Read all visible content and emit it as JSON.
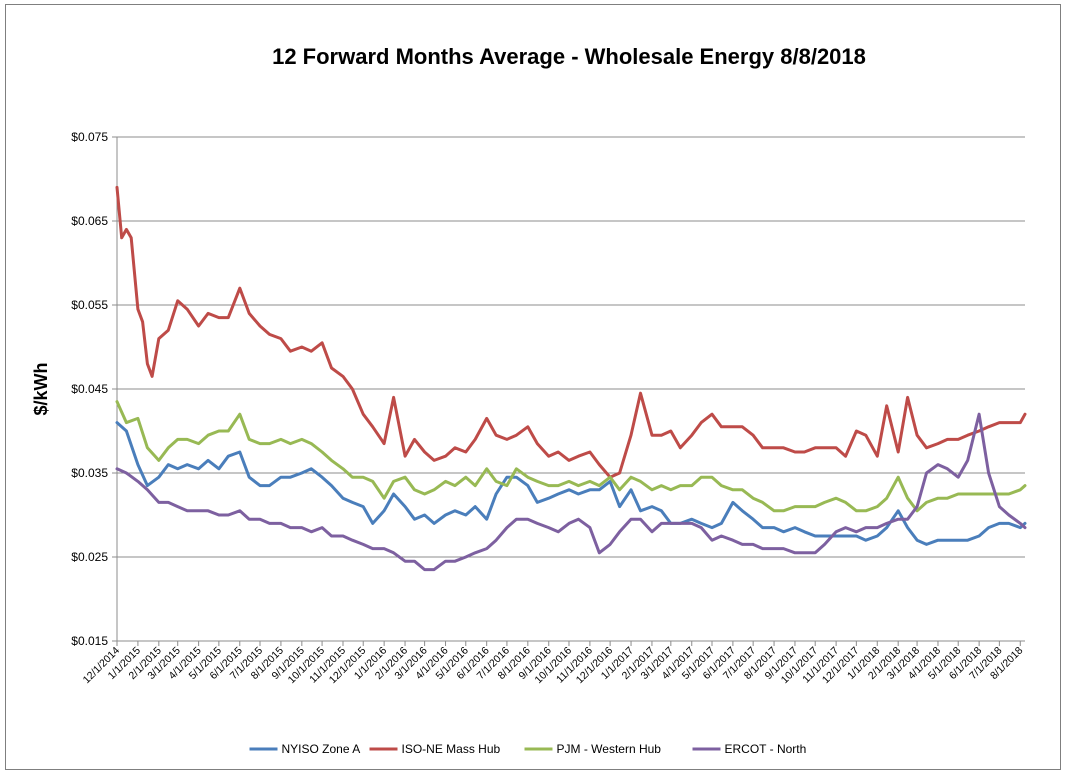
{
  "chart_data": {
    "type": "line",
    "title": "12 Forward Months Average - Wholesale Energy 8/8/2018",
    "ylabel": "$/kWh",
    "xlabel": "",
    "ylim": [
      0.015,
      0.075
    ],
    "y_ticks": [
      0.015,
      0.025,
      0.035,
      0.045,
      0.055,
      0.065,
      0.075
    ],
    "y_tick_labels": [
      "$0.015",
      "$0.025",
      "$0.035",
      "$0.045",
      "$0.055",
      "$0.065",
      "$0.075"
    ],
    "x_tick_labels": [
      "12/1/2014",
      "1/1/2015",
      "2/1/2015",
      "3/1/2015",
      "4/1/2015",
      "5/1/2015",
      "6/1/2015",
      "7/1/2015",
      "8/1/2015",
      "9/1/2015",
      "10/1/2015",
      "11/1/2015",
      "12/1/2015",
      "1/1/2016",
      "2/1/2016",
      "3/1/2016",
      "4/1/2016",
      "5/1/2016",
      "6/1/2016",
      "7/1/2016",
      "8/1/2016",
      "9/1/2016",
      "10/1/2016",
      "11/1/2016",
      "12/1/2016",
      "1/1/2017",
      "2/1/2017",
      "3/1/2017",
      "4/1/2017",
      "5/1/2017",
      "6/1/2017",
      "7/1/2017",
      "8/1/2017",
      "9/1/2017",
      "10/1/2017",
      "11/1/2017",
      "12/1/2017",
      "1/1/2018",
      "2/1/2018",
      "3/1/2018",
      "4/1/2018",
      "5/1/2018",
      "6/1/2018",
      "7/1/2018",
      "8/1/2018"
    ],
    "grid": true,
    "legend_position": "bottom",
    "series": [
      {
        "name": "NYISO Zone A",
        "color": "#4a7ebb",
        "x": [
          "12/1/2014",
          "12/15/2014",
          "1/1/2015",
          "1/15/2015",
          "2/1/2015",
          "2/15/2015",
          "3/1/2015",
          "3/15/2015",
          "4/1/2015",
          "4/15/2015",
          "5/1/2015",
          "5/15/2015",
          "6/1/2015",
          "6/15/2015",
          "7/1/2015",
          "7/15/2015",
          "8/1/2015",
          "8/15/2015",
          "9/1/2015",
          "9/15/2015",
          "10/1/2015",
          "10/15/2015",
          "11/1/2015",
          "11/15/2015",
          "12/1/2015",
          "12/15/2015",
          "1/1/2016",
          "1/15/2016",
          "2/1/2016",
          "2/15/2016",
          "3/1/2016",
          "3/15/2016",
          "4/1/2016",
          "4/15/2016",
          "5/1/2016",
          "5/15/2016",
          "6/1/2016",
          "6/15/2016",
          "7/1/2016",
          "7/15/2016",
          "8/1/2016",
          "8/15/2016",
          "9/1/2016",
          "9/15/2016",
          "10/1/2016",
          "10/15/2016",
          "11/1/2016",
          "11/15/2016",
          "12/1/2016",
          "12/15/2016",
          "1/1/2017",
          "1/15/2017",
          "2/1/2017",
          "2/15/2017",
          "3/1/2017",
          "3/15/2017",
          "4/1/2017",
          "4/15/2017",
          "5/1/2017",
          "5/15/2017",
          "6/1/2017",
          "6/15/2017",
          "7/1/2017",
          "7/15/2017",
          "8/1/2017",
          "8/15/2017",
          "9/1/2017",
          "9/15/2017",
          "10/1/2017",
          "10/15/2017",
          "11/1/2017",
          "11/15/2017",
          "12/1/2017",
          "12/15/2017",
          "1/1/2018",
          "1/15/2018",
          "2/1/2018",
          "2/15/2018",
          "3/1/2018",
          "3/15/2018",
          "4/1/2018",
          "4/15/2018",
          "5/1/2018",
          "5/15/2018",
          "6/1/2018",
          "6/15/2018",
          "7/1/2018",
          "7/15/2018",
          "8/1/2018",
          "8/8/2018"
        ],
        "values": [
          0.041,
          0.04,
          0.036,
          0.0335,
          0.0345,
          0.036,
          0.0355,
          0.036,
          0.0355,
          0.0365,
          0.0355,
          0.037,
          0.0375,
          0.0345,
          0.0335,
          0.0335,
          0.0345,
          0.0345,
          0.035,
          0.0355,
          0.0345,
          0.0335,
          0.032,
          0.0315,
          0.031,
          0.029,
          0.0305,
          0.0325,
          0.031,
          0.0295,
          0.03,
          0.029,
          0.03,
          0.0305,
          0.03,
          0.031,
          0.0295,
          0.0325,
          0.0345,
          0.0345,
          0.0335,
          0.0315,
          0.032,
          0.0325,
          0.033,
          0.0325,
          0.033,
          0.033,
          0.034,
          0.031,
          0.033,
          0.0305,
          0.031,
          0.0305,
          0.029,
          0.029,
          0.0295,
          0.029,
          0.0285,
          0.029,
          0.0315,
          0.0305,
          0.0295,
          0.0285,
          0.0285,
          0.028,
          0.0285,
          0.028,
          0.0275,
          0.0275,
          0.0275,
          0.0275,
          0.0275,
          0.027,
          0.0275,
          0.0285,
          0.0305,
          0.0285,
          0.027,
          0.0265,
          0.027,
          0.027,
          0.027,
          0.027,
          0.0275,
          0.0285,
          0.029,
          0.029,
          0.0285,
          0.029
        ]
      },
      {
        "name": "ISO-NE Mass Hub",
        "color": "#be4b48",
        "x": [
          "12/1/2014",
          "12/8/2014",
          "12/15/2014",
          "12/22/2014",
          "1/1/2015",
          "1/8/2015",
          "1/15/2015",
          "1/22/2015",
          "2/1/2015",
          "2/15/2015",
          "3/1/2015",
          "3/15/2015",
          "4/1/2015",
          "4/15/2015",
          "5/1/2015",
          "5/15/2015",
          "6/1/2015",
          "6/15/2015",
          "7/1/2015",
          "7/15/2015",
          "8/1/2015",
          "8/15/2015",
          "9/1/2015",
          "9/15/2015",
          "10/1/2015",
          "10/15/2015",
          "11/1/2015",
          "11/15/2015",
          "12/1/2015",
          "12/15/2015",
          "1/1/2016",
          "1/15/2016",
          "2/1/2016",
          "2/15/2016",
          "3/1/2016",
          "3/15/2016",
          "4/1/2016",
          "4/15/2016",
          "5/1/2016",
          "5/15/2016",
          "6/1/2016",
          "6/15/2016",
          "7/1/2016",
          "7/15/2016",
          "8/1/2016",
          "8/15/2016",
          "9/1/2016",
          "9/15/2016",
          "10/1/2016",
          "10/15/2016",
          "11/1/2016",
          "11/15/2016",
          "12/1/2016",
          "12/15/2016",
          "1/1/2017",
          "1/15/2017",
          "2/1/2017",
          "2/15/2017",
          "3/1/2017",
          "3/15/2017",
          "4/1/2017",
          "4/15/2017",
          "5/1/2017",
          "5/15/2017",
          "6/1/2017",
          "6/15/2017",
          "7/1/2017",
          "7/15/2017",
          "8/1/2017",
          "8/15/2017",
          "9/1/2017",
          "9/15/2017",
          "10/1/2017",
          "10/15/2017",
          "11/1/2017",
          "11/15/2017",
          "12/1/2017",
          "12/15/2017",
          "1/1/2018",
          "1/15/2018",
          "2/1/2018",
          "2/15/2018",
          "3/1/2018",
          "3/15/2018",
          "4/1/2018",
          "4/15/2018",
          "5/1/2018",
          "5/15/2018",
          "6/1/2018",
          "6/15/2018",
          "7/1/2018",
          "7/15/2018",
          "8/1/2018",
          "8/8/2018"
        ],
        "values": [
          0.069,
          0.063,
          0.064,
          0.063,
          0.0545,
          0.053,
          0.048,
          0.0465,
          0.051,
          0.052,
          0.0555,
          0.0545,
          0.0525,
          0.054,
          0.0535,
          0.0535,
          0.057,
          0.054,
          0.0525,
          0.0515,
          0.051,
          0.0495,
          0.05,
          0.0495,
          0.0505,
          0.0475,
          0.0465,
          0.045,
          0.042,
          0.0405,
          0.0385,
          0.044,
          0.037,
          0.039,
          0.0375,
          0.0365,
          0.037,
          0.038,
          0.0375,
          0.039,
          0.0415,
          0.0395,
          0.039,
          0.0395,
          0.0405,
          0.0385,
          0.037,
          0.0375,
          0.0365,
          0.037,
          0.0375,
          0.036,
          0.0345,
          0.035,
          0.0395,
          0.0445,
          0.0395,
          0.0395,
          0.04,
          0.038,
          0.0395,
          0.041,
          0.042,
          0.0405,
          0.0405,
          0.0405,
          0.0395,
          0.038,
          0.038,
          0.038,
          0.0375,
          0.0375,
          0.038,
          0.038,
          0.038,
          0.037,
          0.04,
          0.0395,
          0.037,
          0.043,
          0.0375,
          0.044,
          0.0395,
          0.038,
          0.0385,
          0.039,
          0.039,
          0.0395,
          0.04,
          0.0405,
          0.041,
          0.041,
          0.041,
          0.042
        ]
      },
      {
        "name": "PJM - Western Hub",
        "color": "#98b954",
        "x": [
          "12/1/2014",
          "12/15/2014",
          "1/1/2015",
          "1/15/2015",
          "2/1/2015",
          "2/15/2015",
          "3/1/2015",
          "3/15/2015",
          "4/1/2015",
          "4/15/2015",
          "5/1/2015",
          "5/15/2015",
          "6/1/2015",
          "6/15/2015",
          "7/1/2015",
          "7/15/2015",
          "8/1/2015",
          "8/15/2015",
          "9/1/2015",
          "9/15/2015",
          "10/1/2015",
          "10/15/2015",
          "11/1/2015",
          "11/15/2015",
          "12/1/2015",
          "12/15/2015",
          "1/1/2016",
          "1/15/2016",
          "2/1/2016",
          "2/15/2016",
          "3/1/2016",
          "3/15/2016",
          "4/1/2016",
          "4/15/2016",
          "5/1/2016",
          "5/15/2016",
          "6/1/2016",
          "6/15/2016",
          "7/1/2016",
          "7/15/2016",
          "8/1/2016",
          "8/15/2016",
          "9/1/2016",
          "9/15/2016",
          "10/1/2016",
          "10/15/2016",
          "11/1/2016",
          "11/15/2016",
          "12/1/2016",
          "12/15/2016",
          "1/1/2017",
          "1/15/2017",
          "2/1/2017",
          "2/15/2017",
          "3/1/2017",
          "3/15/2017",
          "4/1/2017",
          "4/15/2017",
          "5/1/2017",
          "5/15/2017",
          "6/1/2017",
          "6/15/2017",
          "7/1/2017",
          "7/15/2017",
          "8/1/2017",
          "8/15/2017",
          "9/1/2017",
          "9/15/2017",
          "10/1/2017",
          "10/15/2017",
          "11/1/2017",
          "11/15/2017",
          "12/1/2017",
          "12/15/2017",
          "1/1/2018",
          "1/15/2018",
          "2/1/2018",
          "2/15/2018",
          "3/1/2018",
          "3/15/2018",
          "4/1/2018",
          "4/15/2018",
          "5/1/2018",
          "5/15/2018",
          "6/1/2018",
          "6/15/2018",
          "7/1/2018",
          "7/15/2018",
          "8/1/2018",
          "8/8/2018"
        ],
        "values": [
          0.0435,
          0.041,
          0.0415,
          0.038,
          0.0365,
          0.038,
          0.039,
          0.039,
          0.0385,
          0.0395,
          0.04,
          0.04,
          0.042,
          0.039,
          0.0385,
          0.0385,
          0.039,
          0.0385,
          0.039,
          0.0385,
          0.0375,
          0.0365,
          0.0355,
          0.0345,
          0.0345,
          0.034,
          0.032,
          0.034,
          0.0345,
          0.033,
          0.0325,
          0.033,
          0.034,
          0.0335,
          0.0345,
          0.0335,
          0.0355,
          0.034,
          0.0335,
          0.0355,
          0.0345,
          0.034,
          0.0335,
          0.0335,
          0.034,
          0.0335,
          0.034,
          0.0335,
          0.0345,
          0.033,
          0.0345,
          0.034,
          0.033,
          0.0335,
          0.033,
          0.0335,
          0.0335,
          0.0345,
          0.0345,
          0.0335,
          0.033,
          0.033,
          0.032,
          0.0315,
          0.0305,
          0.0305,
          0.031,
          0.031,
          0.031,
          0.0315,
          0.032,
          0.0315,
          0.0305,
          0.0305,
          0.031,
          0.032,
          0.0345,
          0.032,
          0.0305,
          0.0315,
          0.032,
          0.032,
          0.0325,
          0.0325,
          0.0325,
          0.0325,
          0.0325,
          0.0325,
          0.033,
          0.0335
        ]
      },
      {
        "name": "ERCOT - North",
        "color": "#7d60a0",
        "x": [
          "12/1/2014",
          "12/15/2014",
          "1/1/2015",
          "1/15/2015",
          "2/1/2015",
          "2/15/2015",
          "3/1/2015",
          "3/15/2015",
          "4/1/2015",
          "4/15/2015",
          "5/1/2015",
          "5/15/2015",
          "6/1/2015",
          "6/15/2015",
          "7/1/2015",
          "7/15/2015",
          "8/1/2015",
          "8/15/2015",
          "9/1/2015",
          "9/15/2015",
          "10/1/2015",
          "10/15/2015",
          "11/1/2015",
          "11/15/2015",
          "12/1/2015",
          "12/15/2015",
          "1/1/2016",
          "1/15/2016",
          "2/1/2016",
          "2/15/2016",
          "3/1/2016",
          "3/15/2016",
          "4/1/2016",
          "4/15/2016",
          "5/1/2016",
          "5/15/2016",
          "6/1/2016",
          "6/15/2016",
          "7/1/2016",
          "7/15/2016",
          "8/1/2016",
          "8/15/2016",
          "9/1/2016",
          "9/15/2016",
          "10/1/2016",
          "10/15/2016",
          "11/1/2016",
          "11/15/2016",
          "12/1/2016",
          "12/15/2016",
          "1/1/2017",
          "1/15/2017",
          "2/1/2017",
          "2/15/2017",
          "3/1/2017",
          "3/15/2017",
          "4/1/2017",
          "4/15/2017",
          "5/1/2017",
          "5/15/2017",
          "6/1/2017",
          "6/15/2017",
          "7/1/2017",
          "7/15/2017",
          "8/1/2017",
          "8/15/2017",
          "9/1/2017",
          "9/15/2017",
          "10/1/2017",
          "10/15/2017",
          "11/1/2017",
          "11/15/2017",
          "12/1/2017",
          "12/15/2017",
          "1/1/2018",
          "1/15/2018",
          "2/1/2018",
          "2/15/2018",
          "3/1/2018",
          "3/15/2018",
          "4/1/2018",
          "4/15/2018",
          "5/1/2018",
          "5/15/2018",
          "6/1/2018",
          "6/15/2018",
          "7/1/2018",
          "7/15/2018",
          "8/1/2018",
          "8/8/2018"
        ],
        "values": [
          0.0355,
          0.035,
          0.034,
          0.033,
          0.0315,
          0.0315,
          0.031,
          0.0305,
          0.0305,
          0.0305,
          0.03,
          0.03,
          0.0305,
          0.0295,
          0.0295,
          0.029,
          0.029,
          0.0285,
          0.0285,
          0.028,
          0.0285,
          0.0275,
          0.0275,
          0.027,
          0.0265,
          0.026,
          0.026,
          0.0255,
          0.0245,
          0.0245,
          0.0235,
          0.0235,
          0.0245,
          0.0245,
          0.025,
          0.0255,
          0.026,
          0.027,
          0.0285,
          0.0295,
          0.0295,
          0.029,
          0.0285,
          0.028,
          0.029,
          0.0295,
          0.0285,
          0.0255,
          0.0265,
          0.028,
          0.0295,
          0.0295,
          0.028,
          0.029,
          0.029,
          0.029,
          0.029,
          0.0285,
          0.027,
          0.0275,
          0.027,
          0.0265,
          0.0265,
          0.026,
          0.026,
          0.026,
          0.0255,
          0.0255,
          0.0255,
          0.0265,
          0.028,
          0.0285,
          0.028,
          0.0285,
          0.0285,
          0.029,
          0.0295,
          0.0295,
          0.031,
          0.035,
          0.036,
          0.0355,
          0.0345,
          0.0365,
          0.042,
          0.035,
          0.031,
          0.03,
          0.029,
          0.0285
        ]
      }
    ]
  }
}
